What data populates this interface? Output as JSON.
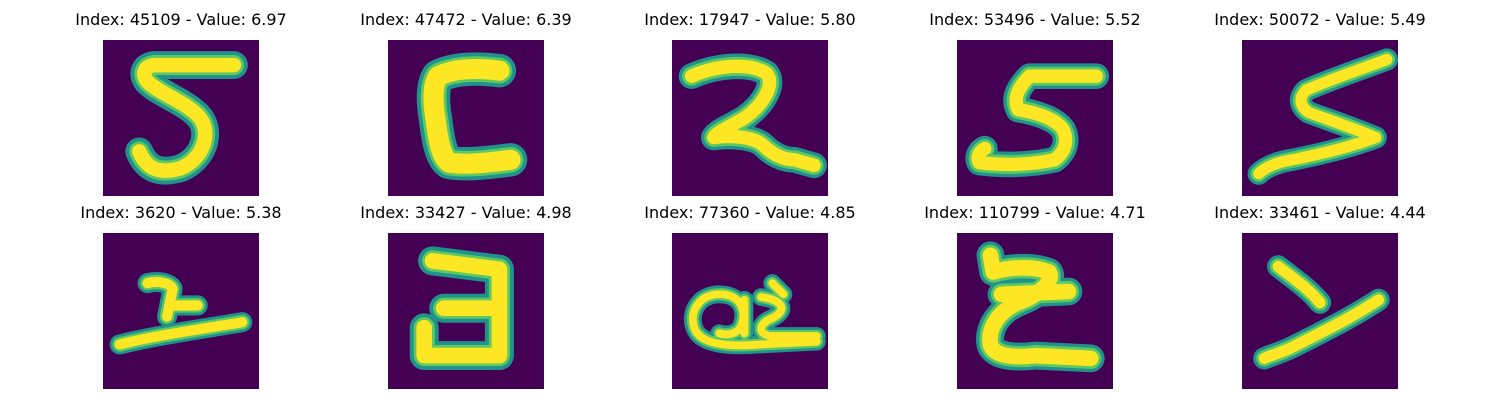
{
  "colors": {
    "background": "#440154",
    "stroke_edge": "#21918c",
    "stroke_mid": "#5ec962",
    "stroke_core": "#fde725",
    "title_text": "#000000"
  },
  "panels": [
    {
      "title": "Index: 45109 - Value: 6.97",
      "glyph": "digit-5"
    },
    {
      "title": "Index: 47472 - Value: 6.39",
      "glyph": "letter-c"
    },
    {
      "title": "Index: 17947 - Value: 5.80",
      "glyph": "digit-2"
    },
    {
      "title": "Index: 53496 - Value: 5.52",
      "glyph": "digit-5"
    },
    {
      "title": "Index: 50072 - Value: 5.49",
      "glyph": "letter-s"
    },
    {
      "title": "Index: 3620 - Value: 5.38",
      "glyph": "letter-y"
    },
    {
      "title": "Index: 33427 - Value: 4.98",
      "glyph": "digit-3"
    },
    {
      "title": "Index: 77360 - Value: 4.85",
      "glyph": "letters-ax"
    },
    {
      "title": "Index: 110799 - Value: 4.71",
      "glyph": "digit-2"
    },
    {
      "title": "Index: 33461 - Value: 4.44",
      "glyph": "letter-y"
    }
  ]
}
